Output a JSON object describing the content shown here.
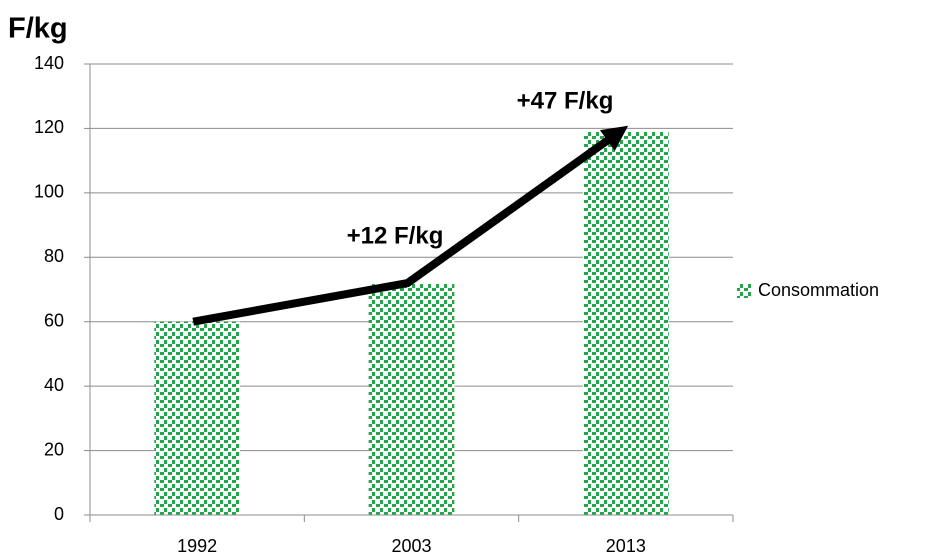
{
  "chart_data": {
    "type": "bar",
    "title": "F/kg",
    "categories": [
      "1992",
      "2003",
      "2013"
    ],
    "series": [
      {
        "name": "Consommation",
        "color": "#22a84a",
        "values": [
          60,
          72,
          119
        ]
      }
    ],
    "annotations": [
      {
        "text": "+12 F/kg"
      },
      {
        "text": "+47 F/kg"
      }
    ],
    "ylim": [
      0,
      140
    ],
    "yticks": [
      0,
      20,
      40,
      60,
      80,
      100,
      120,
      140
    ],
    "grid": true,
    "legend": "right"
  }
}
